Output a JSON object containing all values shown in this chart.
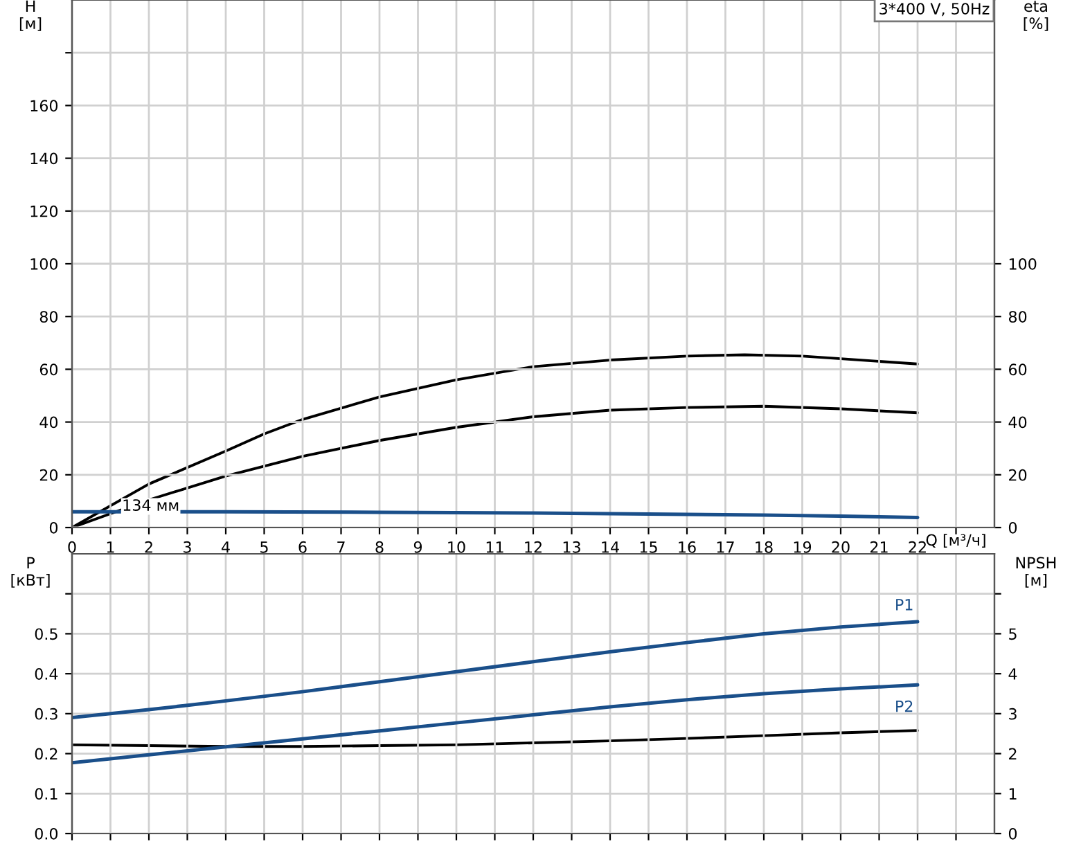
{
  "chart_data": [
    {
      "type": "line",
      "title": "3*400 V, 50Hz",
      "xlabel": "Q [м³/ч]",
      "ylabel": "H\n[м]",
      "y2label": "eta\n[%]",
      "x": [
        0,
        2,
        4,
        5,
        6,
        8,
        10,
        12,
        14,
        16,
        17.5,
        19,
        20,
        22
      ],
      "series": [
        {
          "color": "#000000",
          "axis": "y2",
          "values": [
            0,
            16.5,
            29,
            35.5,
            41,
            49.5,
            56,
            61,
            63.5,
            65,
            65.5,
            65,
            64,
            62
          ]
        },
        {
          "color": "#000000",
          "axis": "y2",
          "x": [
            0,
            2,
            4,
            6,
            8,
            10,
            12,
            14,
            16,
            18,
            20,
            22
          ],
          "values": [
            0,
            10.5,
            19.5,
            27,
            33,
            38,
            42,
            44.5,
            45.5,
            46,
            45,
            43.5
          ]
        },
        {
          "color": "#1a4f8a",
          "x": [
            0,
            4,
            8,
            12,
            16,
            18,
            20,
            22
          ],
          "values": [
            6,
            6,
            5.8,
            5.5,
            5,
            4.7,
            4.3,
            3.8
          ]
        }
      ],
      "annotations": [
        {
          "text": "134 мм",
          "x": 1.3,
          "y": 8
        }
      ],
      "xlim": [
        0,
        24
      ],
      "xticks": [
        0,
        1,
        2,
        3,
        4,
        5,
        6,
        7,
        8,
        9,
        10,
        11,
        12,
        13,
        14,
        15,
        16,
        17,
        18,
        19,
        20,
        21,
        22,
        {
          "value": 23,
          "label": null
        }
      ],
      "ylim": [
        0,
        200
      ],
      "yticks": [
        0,
        20,
        40,
        60,
        80,
        100,
        120,
        140,
        160,
        {
          "value": 180,
          "label": null
        }
      ],
      "y2lim": [
        0,
        200
      ],
      "y2ticks": [
        0,
        20,
        40,
        60,
        80,
        100
      ],
      "grid": true
    },
    {
      "type": "line",
      "ylabel": "P\n[кВт]",
      "y2label": "NPSH\n[м]",
      "x": [
        0,
        2,
        4,
        6,
        8,
        10,
        12,
        14,
        16,
        18,
        20,
        22
      ],
      "series": [
        {
          "name": "P1",
          "color": "#1a4f8a",
          "values": [
            0.29,
            0.31,
            0.332,
            0.355,
            0.38,
            0.405,
            0.43,
            0.455,
            0.478,
            0.5,
            0.517,
            0.53
          ]
        },
        {
          "name": "P2",
          "color": "#1a4f8a",
          "values": [
            0.177,
            0.197,
            0.217,
            0.237,
            0.257,
            0.277,
            0.297,
            0.317,
            0.335,
            0.35,
            0.362,
            0.372
          ]
        },
        {
          "color": "#000000",
          "axis": "y2",
          "values": [
            2.22,
            2.2,
            2.18,
            2.18,
            2.2,
            2.22,
            2.27,
            2.32,
            2.38,
            2.45,
            2.52,
            2.58
          ]
        }
      ],
      "xlim": [
        0,
        24
      ],
      "xticks": [
        0,
        1,
        2,
        3,
        4,
        5,
        6,
        7,
        8,
        9,
        10,
        11,
        12,
        13,
        14,
        15,
        16,
        17,
        18,
        19,
        20,
        21,
        22,
        23
      ],
      "ylim": [
        0,
        0.7
      ],
      "yticks": [
        {
          "value": 0,
          "label": "0.0"
        },
        0.1,
        0.2,
        0.3,
        0.4,
        0.5,
        {
          "value": 0.6,
          "label": null
        }
      ],
      "y2lim": [
        0,
        7
      ],
      "y2ticks": [
        0,
        1,
        2,
        3,
        4,
        5,
        {
          "value": 6,
          "label": null
        }
      ],
      "tick_labels": "y",
      "grid": true
    }
  ]
}
